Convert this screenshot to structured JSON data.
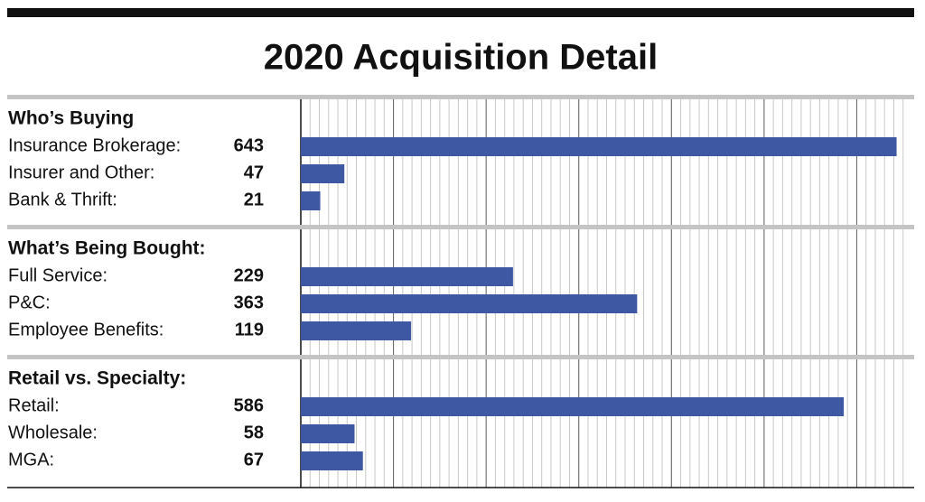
{
  "chart_data": {
    "type": "bar",
    "title": "2020 Acquisition Detail",
    "color": "#3f58a3",
    "xlim": [
      0,
      660
    ],
    "xticks": [
      0,
      100,
      200,
      300,
      400,
      500,
      600
    ],
    "minor_step": 10,
    "grid": true,
    "groups": [
      {
        "title": "Who’s Buying",
        "categories": [
          "Insurance Brokerage:",
          "Insurer and Other:",
          "Bank & Thrift:"
        ],
        "values": [
          643,
          47,
          21
        ]
      },
      {
        "title": "What’s Being Bought:",
        "categories": [
          "Full Service:",
          "P&C:",
          "Employee Benefits:"
        ],
        "values": [
          229,
          363,
          119
        ]
      },
      {
        "title": "Retail vs. Specialty:",
        "categories": [
          "Retail:",
          "Wholesale:",
          "MGA:"
        ],
        "values": [
          586,
          58,
          67
        ]
      }
    ]
  }
}
